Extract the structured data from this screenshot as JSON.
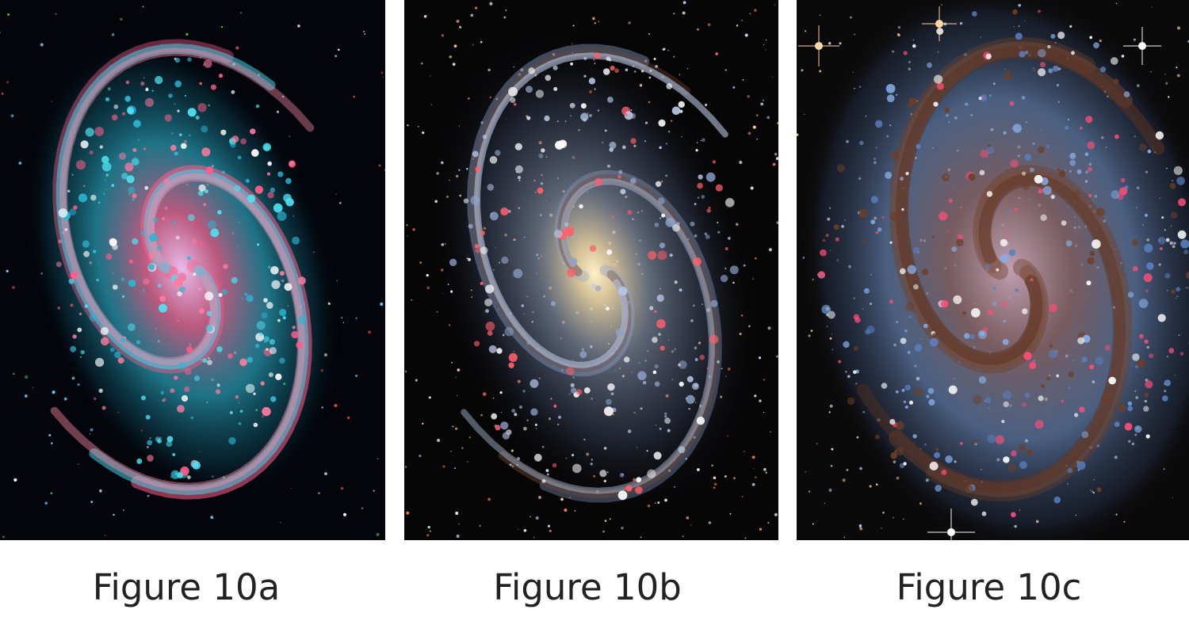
{
  "figures": [
    {
      "caption": "Figure 10a",
      "image_description": "Spiral galaxy in false color: cyan arms with pink/red star-forming regions on black starfield with scattered green and red dots",
      "colors": {
        "background": "#03050b",
        "arms": "#3fd6e8",
        "regions": "#ff4f7a",
        "core": "#f7c2ff"
      }
    },
    {
      "caption": "Figure 10b",
      "image_description": "Spiral galaxy in visible light: bluish-white arms, warm yellow core, reddish nebulae, dense field of stars",
      "colors": {
        "background": "#070607",
        "arms": "#a6b7d6",
        "core": "#f4e3b0",
        "regions": "#ff5a62"
      }
    },
    {
      "caption": "Figure 10c",
      "image_description": "Close-up of galaxy center: blue star clouds with brown dust lanes and pink nebulae, bright stars with diffraction spikes",
      "colors": {
        "background": "#0b0a0b",
        "arms": "#7ea8e0",
        "dust": "#6b3f2a",
        "regions": "#ff4d78"
      }
    }
  ]
}
